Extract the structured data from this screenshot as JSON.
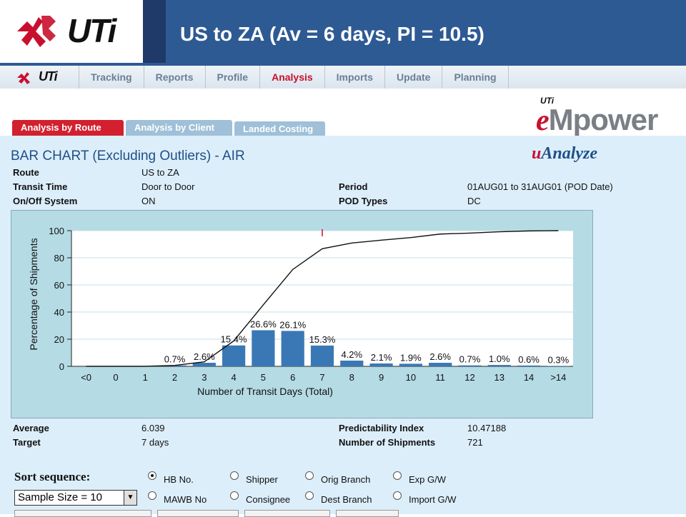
{
  "slide": {
    "logo_text": "UTi",
    "title": "US to ZA (Av = 6 days, PI = 10.5)"
  },
  "nav": {
    "logo_text": "UTi",
    "items": [
      {
        "label": "Tracking",
        "active": false
      },
      {
        "label": "Reports",
        "active": false
      },
      {
        "label": "Profile",
        "active": false
      },
      {
        "label": "Analysis",
        "active": true
      },
      {
        "label": "Imports",
        "active": false
      },
      {
        "label": "Update",
        "active": false
      },
      {
        "label": "Planning",
        "active": false
      }
    ]
  },
  "subtabs": {
    "route": "Analysis by Route",
    "client": "Analysis by Client",
    "landed": "Landed Costing"
  },
  "brand": {
    "empower_top": "UTi",
    "empower_e": "e",
    "empower_rest": "Mpower",
    "uanalyze_u": "u",
    "uanalyze_rest": "Analyze"
  },
  "report": {
    "title": "BAR CHART (Excluding Outliers) - AIR",
    "info": {
      "route_label": "Route",
      "route_value": "US to ZA",
      "transit_label": "Transit Time",
      "transit_value": "Door to Door",
      "onoff_label": "On/Off System",
      "onoff_value": "ON",
      "period_label": "Period",
      "period_value": "01AUG01 to 31AUG01 (POD Date)",
      "pod_label": "POD Types",
      "pod_value": "DC"
    },
    "summary": {
      "average_label": "Average",
      "average_value": "6.039",
      "target_label": "Target",
      "target_value": "7 days",
      "pi_label": "Predictability Index",
      "pi_value": "10.47188",
      "shipments_label": "Number of Shipments",
      "shipments_value": "721"
    }
  },
  "chart_data": {
    "type": "bar",
    "categories": [
      "<0",
      "0",
      "1",
      "2",
      "3",
      "4",
      "5",
      "6",
      "7",
      "8",
      "9",
      "10",
      "11",
      "12",
      "13",
      "14",
      ">14"
    ],
    "values": [
      0,
      0,
      0,
      0.7,
      2.6,
      15.4,
      26.6,
      26.1,
      15.3,
      4.2,
      2.1,
      1.9,
      2.6,
      0.7,
      1.0,
      0.6,
      0.3
    ],
    "data_labels": [
      "",
      "",
      "",
      "0.7%",
      "2.6%",
      "15.4%",
      "26.6%",
      "26.1%",
      "15.3%",
      "4.2%",
      "2.1%",
      "1.9%",
      "2.6%",
      "0.7%",
      "1.0%",
      "0.6%",
      "0.3%"
    ],
    "cumulative": [
      0,
      0,
      0,
      0.7,
      3.3,
      18.7,
      45.3,
      71.4,
      86.7,
      90.9,
      93.0,
      94.9,
      97.5,
      98.2,
      99.2,
      99.8,
      100
    ],
    "target_marker": 7,
    "xlabel": "Number of Transit Days (Total)",
    "ylabel": "Percentage of Shipments",
    "ylim": [
      0,
      100
    ],
    "yticks": [
      0,
      20,
      40,
      60,
      80,
      100
    ],
    "bar_color": "#3a78b5",
    "line_color": "#111111",
    "marker_color": "#c8102e",
    "plot_bg": "#ffffff",
    "grid_color": "#c9dce8"
  },
  "sort": {
    "label": "Sort sequence:",
    "options": [
      {
        "label": "HB No.",
        "checked": true
      },
      {
        "label": "Shipper",
        "checked": false
      },
      {
        "label": "Orig Branch",
        "checked": false
      },
      {
        "label": "Exp G/W",
        "checked": false
      },
      {
        "label": "MAWB No",
        "checked": false
      },
      {
        "label": "Consignee",
        "checked": false
      },
      {
        "label": "Dest Branch",
        "checked": false
      },
      {
        "label": "Import G/W",
        "checked": false
      }
    ],
    "sample_size": "Sample Size = 10"
  }
}
